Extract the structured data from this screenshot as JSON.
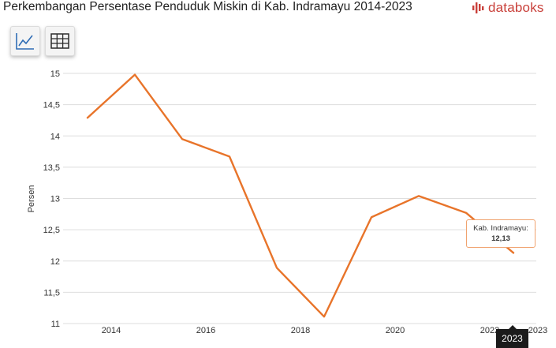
{
  "header": {
    "title": "Perkembangan Persentase Penduduk Miskin di Kab. Indramayu 2014-2023",
    "brand": "databoks"
  },
  "toolbar": {
    "chart_view_icon": "line-chart-icon",
    "table_view_icon": "table-grid-icon"
  },
  "chart_data": {
    "type": "line",
    "title": "Perkembangan Persentase Penduduk Miskin di Kab. Indramayu 2014-2023",
    "xlabel": "",
    "ylabel": "Persen",
    "x": [
      2014,
      2015,
      2016,
      2017,
      2018,
      2019,
      2020,
      2021,
      2022,
      2023
    ],
    "x_ticks": [
      "2014",
      "2016",
      "2018",
      "2020",
      "2022",
      "2023"
    ],
    "y_ticks": [
      "11",
      "11,5",
      "12",
      "12,5",
      "13",
      "13,5",
      "14",
      "14,5",
      "15"
    ],
    "ylim": [
      11,
      15
    ],
    "grid": true,
    "color": "#e8742a",
    "series": [
      {
        "name": "Kab. Indramayu",
        "values": [
          14.29,
          14.98,
          13.95,
          13.67,
          11.89,
          11.11,
          12.7,
          13.04,
          12.77,
          12.13
        ]
      }
    ]
  },
  "tooltip": {
    "label": "Kab. Indramayu:",
    "value": "12,13"
  },
  "x_badge": "2023"
}
